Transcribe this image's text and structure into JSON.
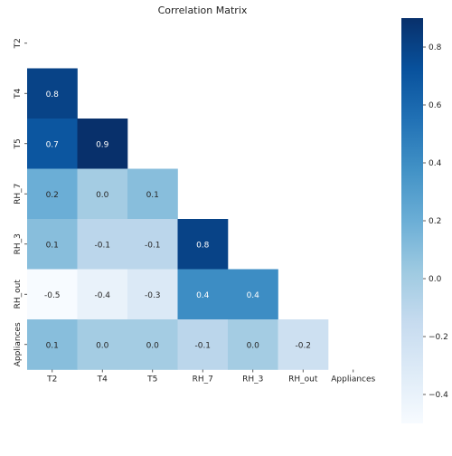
{
  "chart_data": {
    "type": "heatmap",
    "title": "Correlation Matrix",
    "labels": [
      "T2",
      "T4",
      "T5",
      "RH_7",
      "RH_3",
      "RH_out",
      "Appliances"
    ],
    "mask": "upper-triangle-including-diagonal",
    "matrix": [
      [
        null,
        null,
        null,
        null,
        null,
        null,
        null
      ],
      [
        0.8,
        null,
        null,
        null,
        null,
        null,
        null
      ],
      [
        0.7,
        0.9,
        null,
        null,
        null,
        null,
        null
      ],
      [
        0.2,
        0.0,
        0.1,
        null,
        null,
        null,
        null
      ],
      [
        0.1,
        -0.1,
        -0.1,
        0.8,
        null,
        null,
        null
      ],
      [
        -0.5,
        -0.4,
        -0.3,
        0.4,
        0.4,
        null,
        null
      ],
      [
        0.1,
        0.0,
        0.0,
        -0.1,
        0.0,
        -0.2,
        null
      ]
    ],
    "display_format": "0.0",
    "colormap": "Blues",
    "color_range": [
      -0.5,
      0.9
    ],
    "colorbar": {
      "ticks": [
        0.8,
        0.6,
        0.4,
        0.2,
        0.0,
        -0.2,
        -0.4
      ],
      "tick_labels": [
        "0.8",
        "0.6",
        "0.4",
        "0.2",
        "0.0",
        "−0.2",
        "−0.4"
      ]
    },
    "grid": false
  }
}
